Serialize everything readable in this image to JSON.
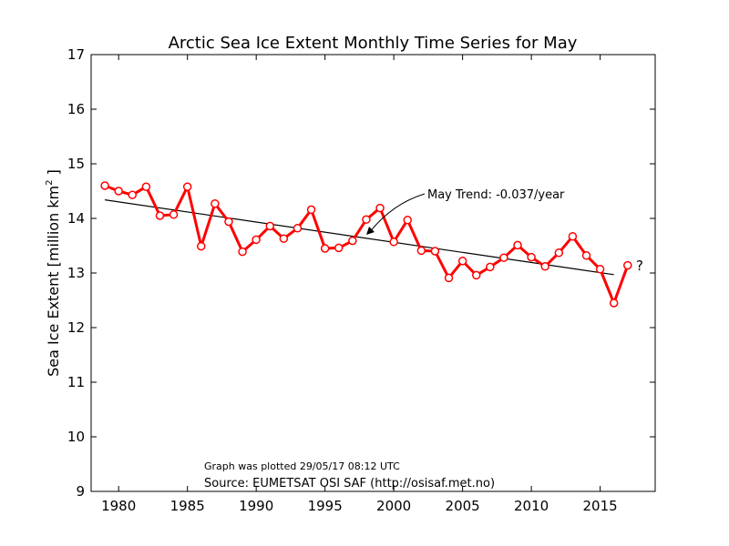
{
  "chart_data": {
    "type": "line",
    "title": "Arctic Sea Ice Extent Monthly Time Series for May",
    "ylabel": "Sea Ice Extent [million km",
    "ylabel_superscript": "2",
    "ylabel_suffix": " ]",
    "xlabel": "",
    "xlim": [
      1978,
      2019
    ],
    "ylim": [
      9,
      17
    ],
    "xticks": [
      1980,
      1985,
      1990,
      1995,
      2000,
      2005,
      2010,
      2015
    ],
    "yticks": [
      9,
      10,
      11,
      12,
      13,
      14,
      15,
      16,
      17
    ],
    "grid": false,
    "series": [
      {
        "color": "#ff0000",
        "marker_fill": "#ffffff",
        "x": [
          1979,
          1980,
          1981,
          1982,
          1983,
          1984,
          1985,
          1986,
          1987,
          1988,
          1989,
          1990,
          1991,
          1992,
          1993,
          1994,
          1995,
          1996,
          1997,
          1998,
          1999,
          2000,
          2001,
          2002,
          2003,
          2004,
          2005,
          2006,
          2007,
          2008,
          2009,
          2010,
          2011,
          2012,
          2013,
          2014,
          2015,
          2016,
          2017
        ],
        "values": [
          14.6,
          14.5,
          14.43,
          14.58,
          14.05,
          14.07,
          14.58,
          13.49,
          14.27,
          13.94,
          13.39,
          13.61,
          13.86,
          13.63,
          13.82,
          14.16,
          13.45,
          13.46,
          13.59,
          13.98,
          14.19,
          13.57,
          13.97,
          13.41,
          13.4,
          12.91,
          13.22,
          12.96,
          13.11,
          13.28,
          13.51,
          13.29,
          13.12,
          13.37,
          13.67,
          13.32,
          13.07,
          12.45,
          13.14
        ]
      }
    ],
    "trend": {
      "color": "#000000",
      "x": [
        1979,
        2016
      ],
      "values": [
        14.34,
        12.97
      ],
      "label": "May Trend: -0.037/year",
      "arrow_target": {
        "x": 1998,
        "y": 13.68
      }
    },
    "pending_marker": "?",
    "notes": {
      "plotted": "Graph was plotted 29/05/17 08:12 UTC",
      "source": "Source: EUMETSAT OSI SAF (http://osisaf.met.no)"
    }
  }
}
